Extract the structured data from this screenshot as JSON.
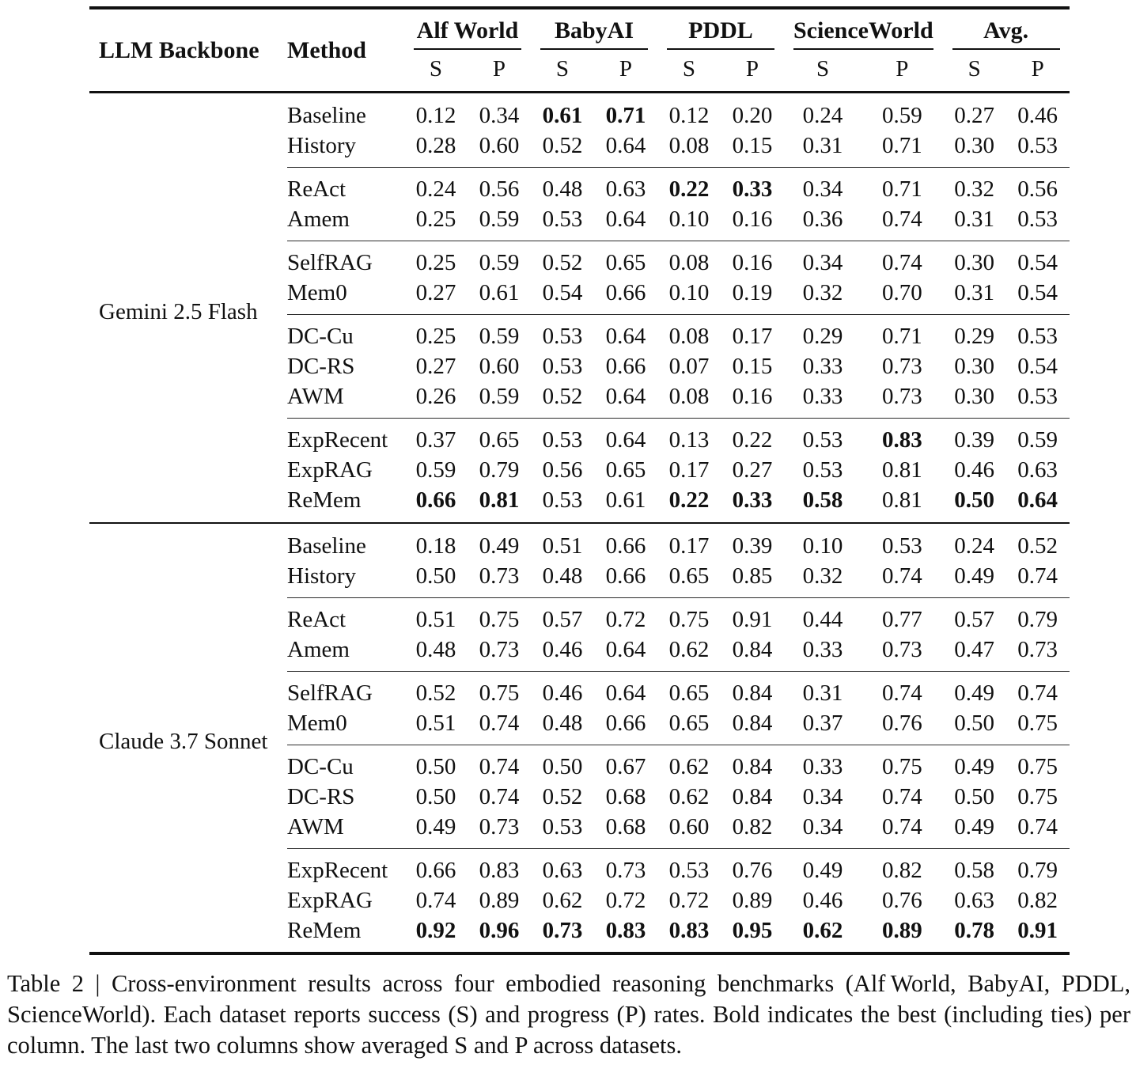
{
  "table": {
    "header": {
      "backbone": "LLM Backbone",
      "method": "Method",
      "sub_s": "S",
      "sub_p": "P",
      "groups": [
        "Alf World",
        "BabyAI",
        "PDDL",
        "ScienceWorld",
        "Avg."
      ]
    },
    "sections": [
      {
        "backbone": "Gemini 2.5 Flash",
        "groups": [
          {
            "rows": [
              {
                "method": "Baseline",
                "values": [
                  "0.12",
                  "0.34",
                  "0.61",
                  "0.71",
                  "0.12",
                  "0.20",
                  "0.24",
                  "0.59",
                  "0.27",
                  "0.46"
                ],
                "bold": [
                  2,
                  3
                ]
              },
              {
                "method": "History",
                "values": [
                  "0.28",
                  "0.60",
                  "0.52",
                  "0.64",
                  "0.08",
                  "0.15",
                  "0.31",
                  "0.71",
                  "0.30",
                  "0.53"
                ],
                "bold": []
              }
            ]
          },
          {
            "rows": [
              {
                "method": "ReAct",
                "values": [
                  "0.24",
                  "0.56",
                  "0.48",
                  "0.63",
                  "0.22",
                  "0.33",
                  "0.34",
                  "0.71",
                  "0.32",
                  "0.56"
                ],
                "bold": [
                  4,
                  5
                ]
              },
              {
                "method": "Amem",
                "values": [
                  "0.25",
                  "0.59",
                  "0.53",
                  "0.64",
                  "0.10",
                  "0.16",
                  "0.36",
                  "0.74",
                  "0.31",
                  "0.53"
                ],
                "bold": []
              }
            ]
          },
          {
            "rows": [
              {
                "method": "SelfRAG",
                "values": [
                  "0.25",
                  "0.59",
                  "0.52",
                  "0.65",
                  "0.08",
                  "0.16",
                  "0.34",
                  "0.74",
                  "0.30",
                  "0.54"
                ],
                "bold": []
              },
              {
                "method": "Mem0",
                "values": [
                  "0.27",
                  "0.61",
                  "0.54",
                  "0.66",
                  "0.10",
                  "0.19",
                  "0.32",
                  "0.70",
                  "0.31",
                  "0.54"
                ],
                "bold": []
              }
            ]
          },
          {
            "rows": [
              {
                "method": "DC-Cu",
                "values": [
                  "0.25",
                  "0.59",
                  "0.53",
                  "0.64",
                  "0.08",
                  "0.17",
                  "0.29",
                  "0.71",
                  "0.29",
                  "0.53"
                ],
                "bold": []
              },
              {
                "method": "DC-RS",
                "values": [
                  "0.27",
                  "0.60",
                  "0.53",
                  "0.66",
                  "0.07",
                  "0.15",
                  "0.33",
                  "0.73",
                  "0.30",
                  "0.54"
                ],
                "bold": []
              },
              {
                "method": "AWM",
                "values": [
                  "0.26",
                  "0.59",
                  "0.52",
                  "0.64",
                  "0.08",
                  "0.16",
                  "0.33",
                  "0.73",
                  "0.30",
                  "0.53"
                ],
                "bold": []
              }
            ]
          },
          {
            "rows": [
              {
                "method": "ExpRecent",
                "values": [
                  "0.37",
                  "0.65",
                  "0.53",
                  "0.64",
                  "0.13",
                  "0.22",
                  "0.53",
                  "0.83",
                  "0.39",
                  "0.59"
                ],
                "bold": [
                  7
                ]
              },
              {
                "method": "ExpRAG",
                "values": [
                  "0.59",
                  "0.79",
                  "0.56",
                  "0.65",
                  "0.17",
                  "0.27",
                  "0.53",
                  "0.81",
                  "0.46",
                  "0.63"
                ],
                "bold": []
              },
              {
                "method": "ReMem",
                "values": [
                  "0.66",
                  "0.81",
                  "0.53",
                  "0.61",
                  "0.22",
                  "0.33",
                  "0.58",
                  "0.81",
                  "0.50",
                  "0.64"
                ],
                "bold": [
                  0,
                  1,
                  4,
                  5,
                  6,
                  8,
                  9
                ]
              }
            ]
          }
        ]
      },
      {
        "backbone": "Claude 3.7 Sonnet",
        "groups": [
          {
            "rows": [
              {
                "method": "Baseline",
                "values": [
                  "0.18",
                  "0.49",
                  "0.51",
                  "0.66",
                  "0.17",
                  "0.39",
                  "0.10",
                  "0.53",
                  "0.24",
                  "0.52"
                ],
                "bold": []
              },
              {
                "method": "History",
                "values": [
                  "0.50",
                  "0.73",
                  "0.48",
                  "0.66",
                  "0.65",
                  "0.85",
                  "0.32",
                  "0.74",
                  "0.49",
                  "0.74"
                ],
                "bold": []
              }
            ]
          },
          {
            "rows": [
              {
                "method": "ReAct",
                "values": [
                  "0.51",
                  "0.75",
                  "0.57",
                  "0.72",
                  "0.75",
                  "0.91",
                  "0.44",
                  "0.77",
                  "0.57",
                  "0.79"
                ],
                "bold": []
              },
              {
                "method": "Amem",
                "values": [
                  "0.48",
                  "0.73",
                  "0.46",
                  "0.64",
                  "0.62",
                  "0.84",
                  "0.33",
                  "0.73",
                  "0.47",
                  "0.73"
                ],
                "bold": []
              }
            ]
          },
          {
            "rows": [
              {
                "method": "SelfRAG",
                "values": [
                  "0.52",
                  "0.75",
                  "0.46",
                  "0.64",
                  "0.65",
                  "0.84",
                  "0.31",
                  "0.74",
                  "0.49",
                  "0.74"
                ],
                "bold": []
              },
              {
                "method": "Mem0",
                "values": [
                  "0.51",
                  "0.74",
                  "0.48",
                  "0.66",
                  "0.65",
                  "0.84",
                  "0.37",
                  "0.76",
                  "0.50",
                  "0.75"
                ],
                "bold": []
              }
            ]
          },
          {
            "rows": [
              {
                "method": "DC-Cu",
                "values": [
                  "0.50",
                  "0.74",
                  "0.50",
                  "0.67",
                  "0.62",
                  "0.84",
                  "0.33",
                  "0.75",
                  "0.49",
                  "0.75"
                ],
                "bold": []
              },
              {
                "method": "DC-RS",
                "values": [
                  "0.50",
                  "0.74",
                  "0.52",
                  "0.68",
                  "0.62",
                  "0.84",
                  "0.34",
                  "0.74",
                  "0.50",
                  "0.75"
                ],
                "bold": []
              },
              {
                "method": "AWM",
                "values": [
                  "0.49",
                  "0.73",
                  "0.53",
                  "0.68",
                  "0.60",
                  "0.82",
                  "0.34",
                  "0.74",
                  "0.49",
                  "0.74"
                ],
                "bold": []
              }
            ]
          },
          {
            "rows": [
              {
                "method": "ExpRecent",
                "values": [
                  "0.66",
                  "0.83",
                  "0.63",
                  "0.73",
                  "0.53",
                  "0.76",
                  "0.49",
                  "0.82",
                  "0.58",
                  "0.79"
                ],
                "bold": []
              },
              {
                "method": "ExpRAG",
                "values": [
                  "0.74",
                  "0.89",
                  "0.62",
                  "0.72",
                  "0.72",
                  "0.89",
                  "0.46",
                  "0.76",
                  "0.63",
                  "0.82"
                ],
                "bold": []
              },
              {
                "method": "ReMem",
                "values": [
                  "0.92",
                  "0.96",
                  "0.73",
                  "0.83",
                  "0.83",
                  "0.95",
                  "0.62",
                  "0.89",
                  "0.78",
                  "0.91"
                ],
                "bold": [
                  0,
                  1,
                  2,
                  3,
                  4,
                  5,
                  6,
                  7,
                  8,
                  9
                ]
              }
            ]
          }
        ]
      }
    ]
  },
  "caption": "Table 2 | Cross-environment results across four embodied reasoning benchmarks (Alf World, BabyAI, PDDL, ScienceWorld). Each dataset reports success (S) and progress (P) rates. Bold indicates the best (including ties) per column. The last two columns show averaged S and P across datasets."
}
